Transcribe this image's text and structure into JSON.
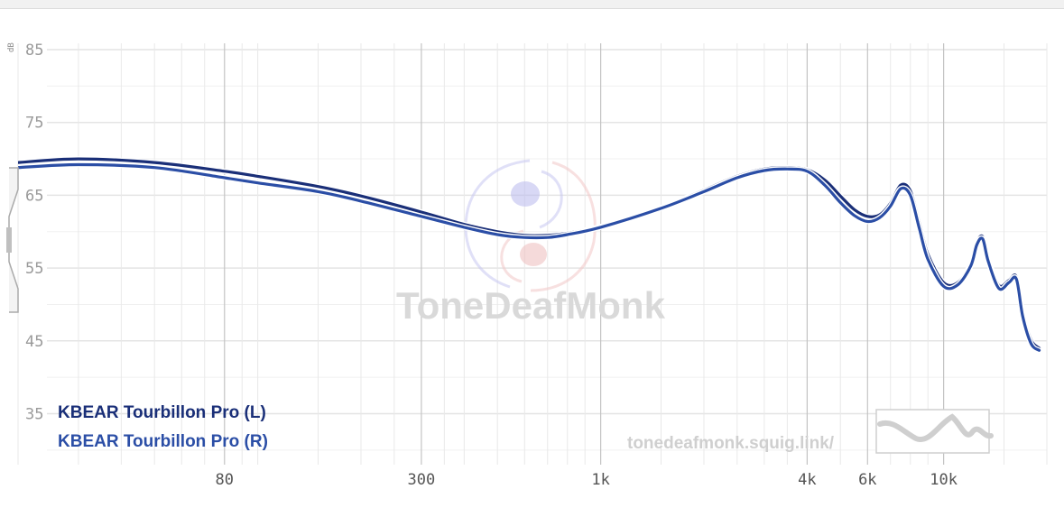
{
  "chart_data": {
    "type": "line",
    "title": "",
    "ylabel": "dB",
    "xlabel": "",
    "x_scale": "log",
    "xlim": [
      20,
      20000
    ],
    "ylim": [
      30,
      85
    ],
    "grid": true,
    "legend_position": "bottom-left",
    "y_ticks": [
      85,
      75,
      65,
      55,
      45,
      35
    ],
    "x_ticks": [
      {
        "value": 80,
        "label": "80"
      },
      {
        "value": 300,
        "label": "300"
      },
      {
        "value": 1000,
        "label": "1k"
      },
      {
        "value": 4000,
        "label": "4k"
      },
      {
        "value": 6000,
        "label": "6k"
      },
      {
        "value": 10000,
        "label": "10k"
      }
    ],
    "series": [
      {
        "name": "KBEAR Tourbillon Pro (L)",
        "color": "#1a2f78",
        "points": [
          [
            20,
            69.5
          ],
          [
            30,
            70.0
          ],
          [
            50,
            69.5
          ],
          [
            80,
            68.3
          ],
          [
            100,
            67.6
          ],
          [
            150,
            66.2
          ],
          [
            200,
            64.9
          ],
          [
            300,
            62.7
          ],
          [
            400,
            61.0
          ],
          [
            500,
            60.0
          ],
          [
            600,
            59.5
          ],
          [
            700,
            59.5
          ],
          [
            800,
            59.8
          ],
          [
            1000,
            60.7
          ],
          [
            1500,
            63.3
          ],
          [
            2000,
            65.7
          ],
          [
            2500,
            67.6
          ],
          [
            3000,
            68.6
          ],
          [
            3500,
            68.8
          ],
          [
            4000,
            68.5
          ],
          [
            4500,
            67.1
          ],
          [
            5000,
            64.9
          ],
          [
            5500,
            63.0
          ],
          [
            6000,
            62.1
          ],
          [
            6500,
            62.3
          ],
          [
            7000,
            63.9
          ],
          [
            7500,
            66.4
          ],
          [
            8000,
            65.6
          ],
          [
            8500,
            61.1
          ],
          [
            9000,
            56.9
          ],
          [
            10000,
            53.0
          ],
          [
            11000,
            53.0
          ],
          [
            12000,
            55.6
          ],
          [
            12500,
            58.5
          ],
          [
            13000,
            59.3
          ],
          [
            13500,
            56.2
          ],
          [
            14500,
            52.6
          ],
          [
            15500,
            53.3
          ],
          [
            16300,
            53.8
          ],
          [
            17000,
            48.9
          ],
          [
            18000,
            45.1
          ],
          [
            19000,
            44.0
          ]
        ]
      },
      {
        "name": "KBEAR Tourbillon Pro (R)",
        "color": "#2b4ea6",
        "points": [
          [
            20,
            68.8
          ],
          [
            30,
            69.2
          ],
          [
            50,
            68.8
          ],
          [
            80,
            67.4
          ],
          [
            100,
            66.7
          ],
          [
            150,
            65.5
          ],
          [
            200,
            64.2
          ],
          [
            300,
            62.1
          ],
          [
            400,
            60.6
          ],
          [
            500,
            59.6
          ],
          [
            600,
            59.2
          ],
          [
            700,
            59.2
          ],
          [
            800,
            59.6
          ],
          [
            1000,
            60.6
          ],
          [
            1500,
            63.2
          ],
          [
            2000,
            65.5
          ],
          [
            2500,
            67.4
          ],
          [
            3000,
            68.4
          ],
          [
            3500,
            68.6
          ],
          [
            4000,
            68.3
          ],
          [
            4500,
            66.4
          ],
          [
            5000,
            64.0
          ],
          [
            5500,
            62.2
          ],
          [
            6000,
            61.4
          ],
          [
            6500,
            61.9
          ],
          [
            7000,
            63.5
          ],
          [
            7500,
            65.9
          ],
          [
            8000,
            65.0
          ],
          [
            8500,
            60.4
          ],
          [
            9000,
            56.2
          ],
          [
            10000,
            52.5
          ],
          [
            11000,
            52.7
          ],
          [
            12000,
            55.3
          ],
          [
            12500,
            58.2
          ],
          [
            13000,
            59.0
          ],
          [
            13500,
            55.9
          ],
          [
            14500,
            52.2
          ],
          [
            15500,
            53.0
          ],
          [
            16300,
            53.5
          ],
          [
            17000,
            48.4
          ],
          [
            18000,
            44.6
          ],
          [
            19000,
            43.7
          ]
        ]
      }
    ]
  },
  "watermark": {
    "brand_text": "ToneDeafMonk",
    "url_text": "tonedeafmonk.squig.link/"
  },
  "icons": {
    "zoom_handle": "zoom-handle-icon",
    "preview": "graph-preview-thumbnail"
  }
}
